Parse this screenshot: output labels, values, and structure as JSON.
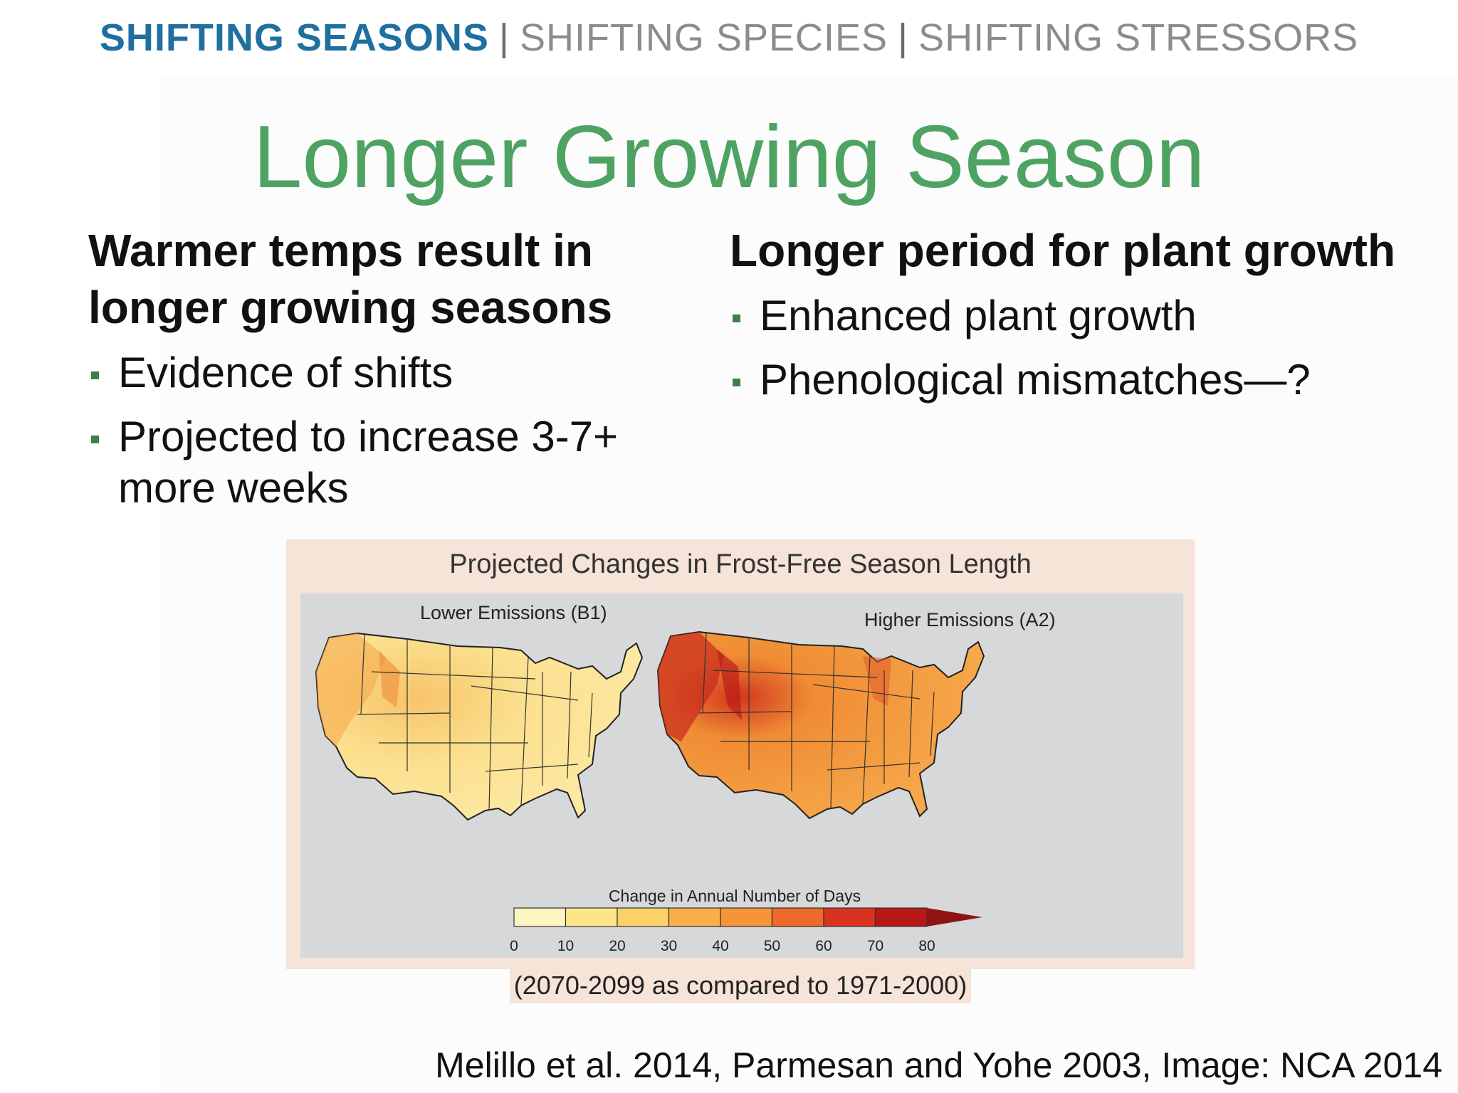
{
  "nav": {
    "active": "SHIFTING SEASONS",
    "separator": "|",
    "item2": "SHIFTING SPECIES",
    "item3": "SHIFTING STRESSORS"
  },
  "title": "Longer Growing Season",
  "left": {
    "heading": "Warmer temps result in longer growing seasons",
    "bullets": [
      "Evidence of shifts",
      "Projected to increase 3-7+ more weeks"
    ]
  },
  "right": {
    "heading": "Longer period for plant growth",
    "bullets": [
      "Enhanced plant growth",
      "Phenological mismatches—?"
    ]
  },
  "figure": {
    "title": "Projected Changes in Frost-Free Season Length",
    "map_left_label": "Lower Emissions (B1)",
    "map_right_label": "Higher Emissions (A2)",
    "legend_title": "Change in Annual Number of Days",
    "legend_ticks": [
      "0",
      "10",
      "20",
      "30",
      "40",
      "50",
      "60",
      "70",
      "80"
    ],
    "legend_colors": [
      "#fdf5c0",
      "#fde68a",
      "#fcd167",
      "#f9b04a",
      "#f59538",
      "#ef6a2a",
      "#d93320",
      "#b81818",
      "#8f1313"
    ],
    "caption": "(2070-2099 as compared to 1971-2000)"
  },
  "citation": "Melillo et al. 2014, Parmesan and Yohe 2003, Image: NCA 2014"
}
